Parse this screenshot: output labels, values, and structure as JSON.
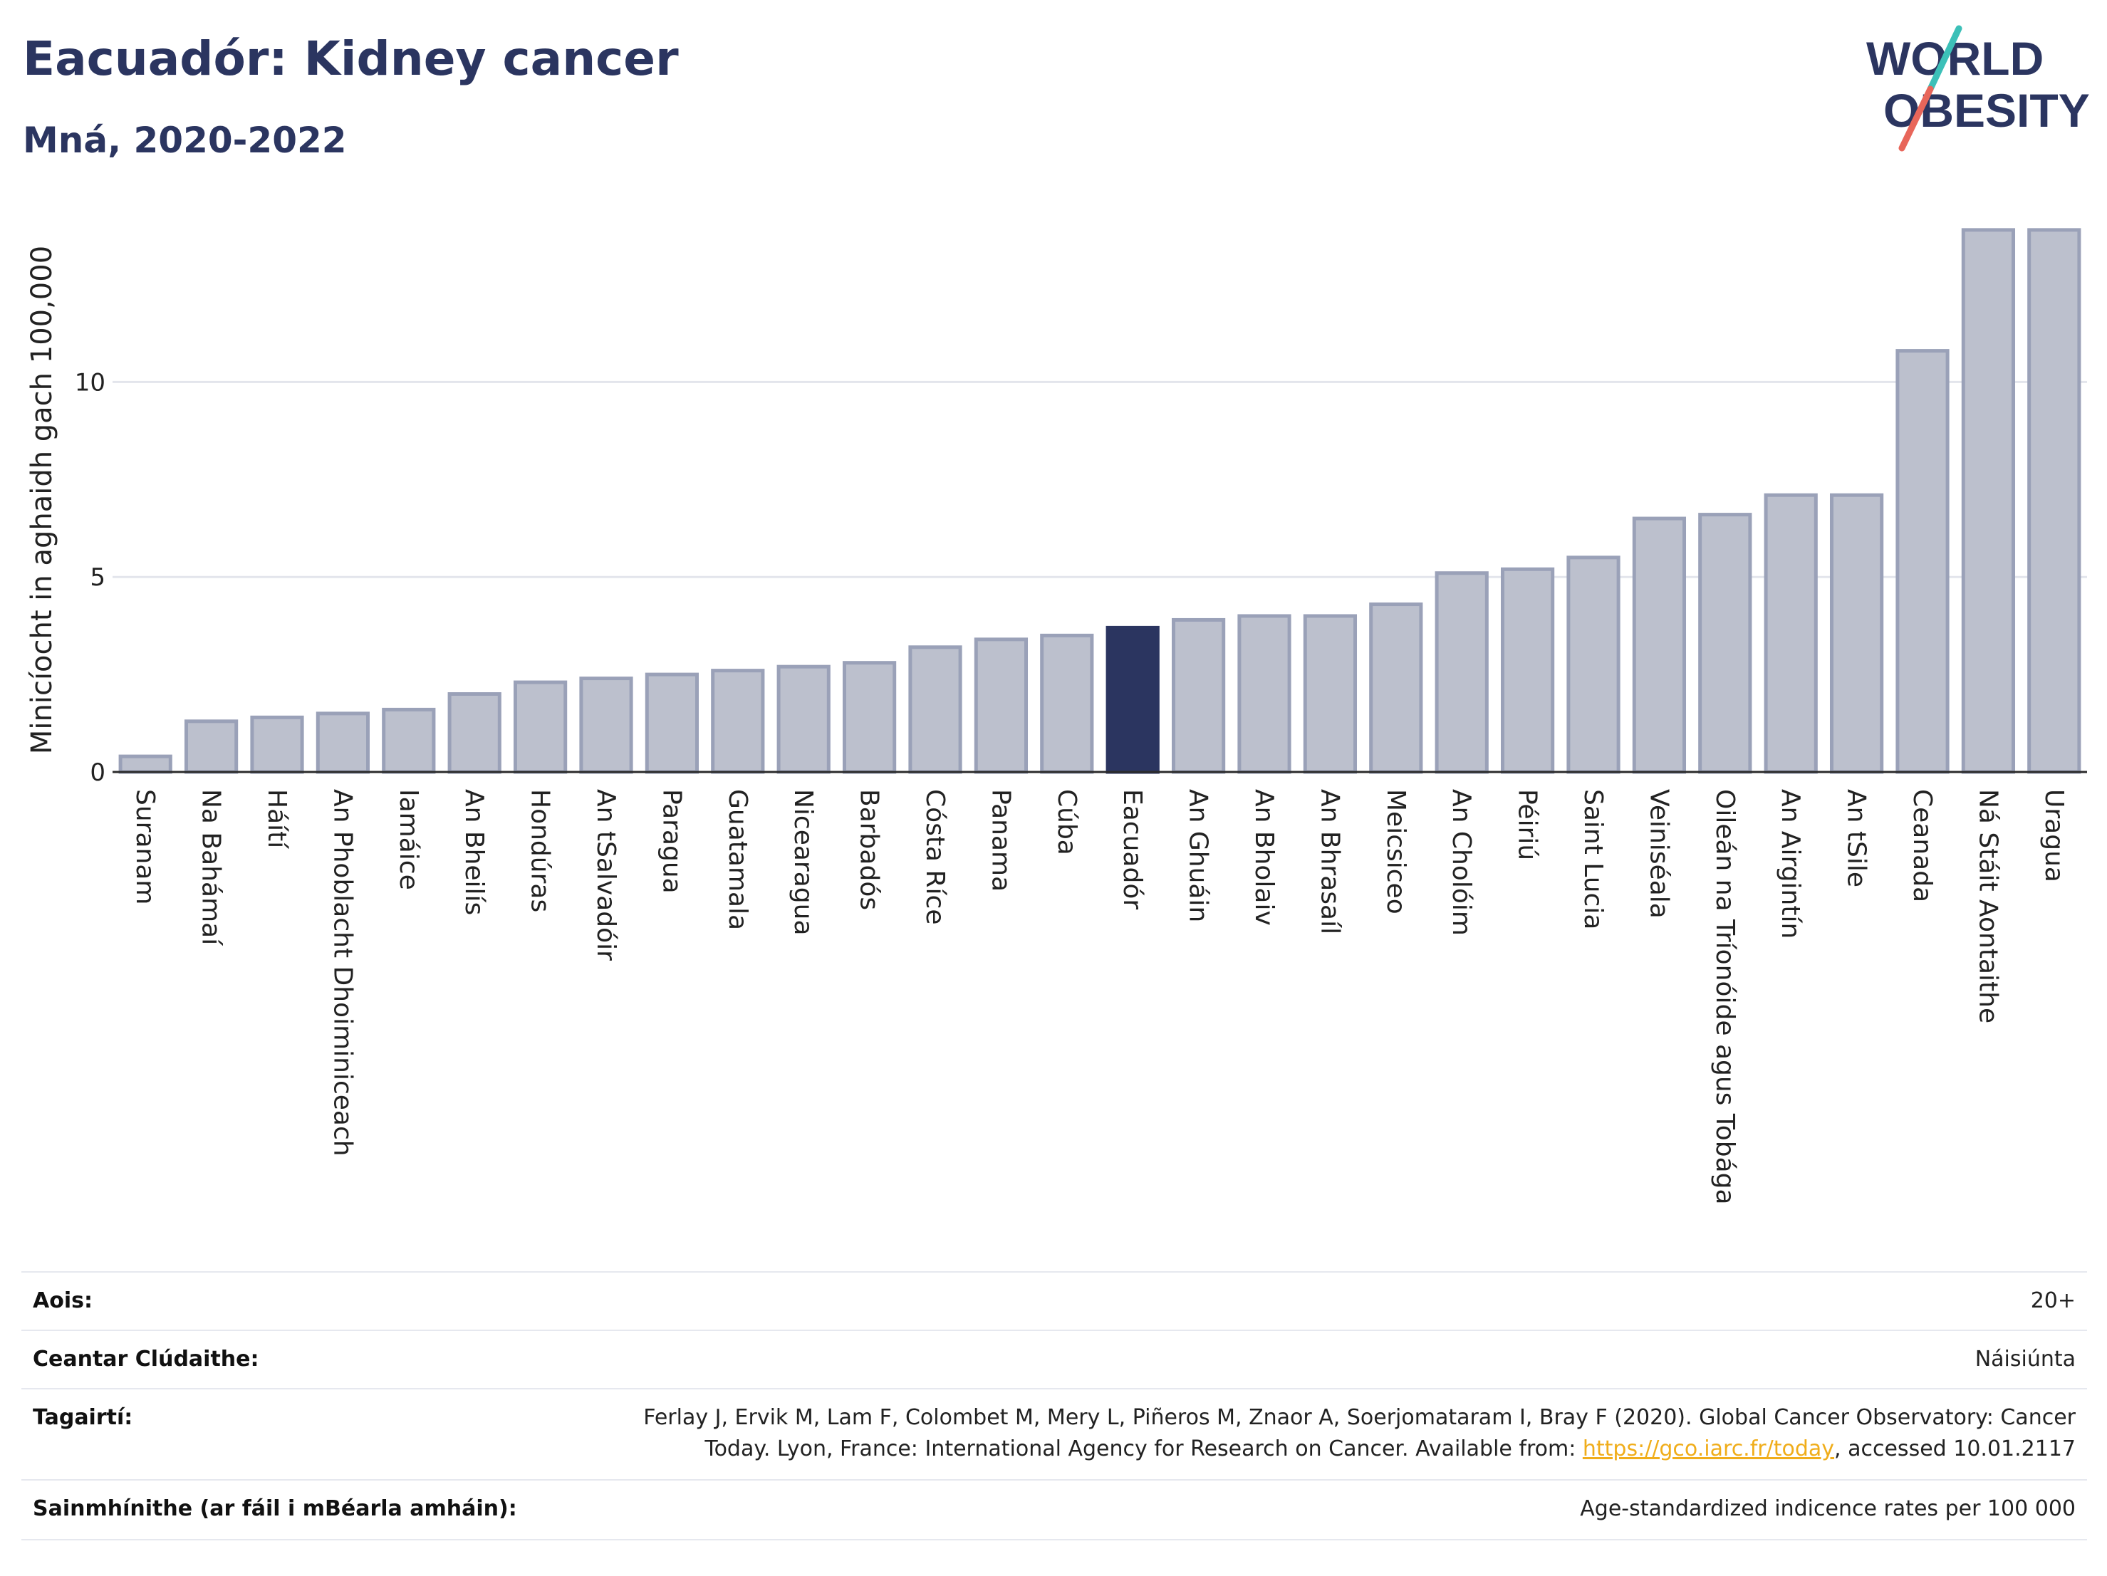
{
  "title": "Eacuadór: Kidney cancer",
  "subtitle": "Mná, 2020-2022",
  "logo": {
    "line1": "WORLD",
    "line2": "OBESITY"
  },
  "colors": {
    "highlight": "#2b3560",
    "bar": "#bcc0cd",
    "bar_stroke": "#9aa1b8",
    "text": "#2b3560",
    "link": "#f0ad1a"
  },
  "chart_data": {
    "type": "bar",
    "ylabel": "Minicíocht in aghaidh gach 100,000",
    "ylim": [
      0,
      14.5
    ],
    "yticks": [
      0,
      5,
      10
    ],
    "grid": true,
    "highlight": "Eacuadór",
    "categories": [
      "Suranam",
      "Na Bahámaí",
      "Háítí",
      "An Phoblacht Dhoiminiceach",
      "Iamáice",
      "An Bheilís",
      "Hondúras",
      "An tSalvadóir",
      "Paragua",
      "Guatamala",
      "Nicearagua",
      "Barbadós",
      "Cósta Ríce",
      "Panama",
      "Cúba",
      "Eacuadór",
      "An Ghuáin",
      "An Bholaiv",
      "An Bhrasaíl",
      "Meicsiceo",
      "An Cholóim",
      "Péiriú",
      "Saint Lucia",
      "Veiniséala",
      "Oileán na Tríonóide agus Tobága",
      "An Airgintín",
      "An tSile",
      "Ceanada",
      "Ná Stáit Aontaithe",
      "Uragua"
    ],
    "values": [
      0.4,
      1.3,
      1.4,
      1.5,
      1.6,
      2.0,
      2.3,
      2.4,
      2.5,
      2.6,
      2.7,
      2.8,
      3.2,
      3.4,
      3.5,
      3.7,
      3.9,
      4.0,
      4.0,
      4.3,
      5.1,
      5.2,
      5.5,
      6.5,
      6.6,
      7.1,
      7.1,
      10.8,
      13.9,
      13.9
    ]
  },
  "info": {
    "age_label": "Aois:",
    "age_value": "20+",
    "coverage_label": "Ceantar Clúdaithe:",
    "coverage_value": "Náisiúnta",
    "refs_label": "Tagairtí:",
    "refs_line1": "Ferlay J, Ervik M, Lam F, Colombet M, Mery L, Piñeros M, Znaor A, Soerjomataram I, Bray F (2020). Global Cancer Observatory: Cancer",
    "refs_line2_pre": "Today. Lyon, France: International Agency for Research on Cancer. Available from: ",
    "refs_link": "https://gco.iarc.fr/today",
    "refs_line2_post": ", accessed 10.01.2117",
    "def_label": "Sainmhínithe (ar fáil i mBéarla amháin):",
    "def_value": "Age-standardized indicence rates per 100 000"
  }
}
